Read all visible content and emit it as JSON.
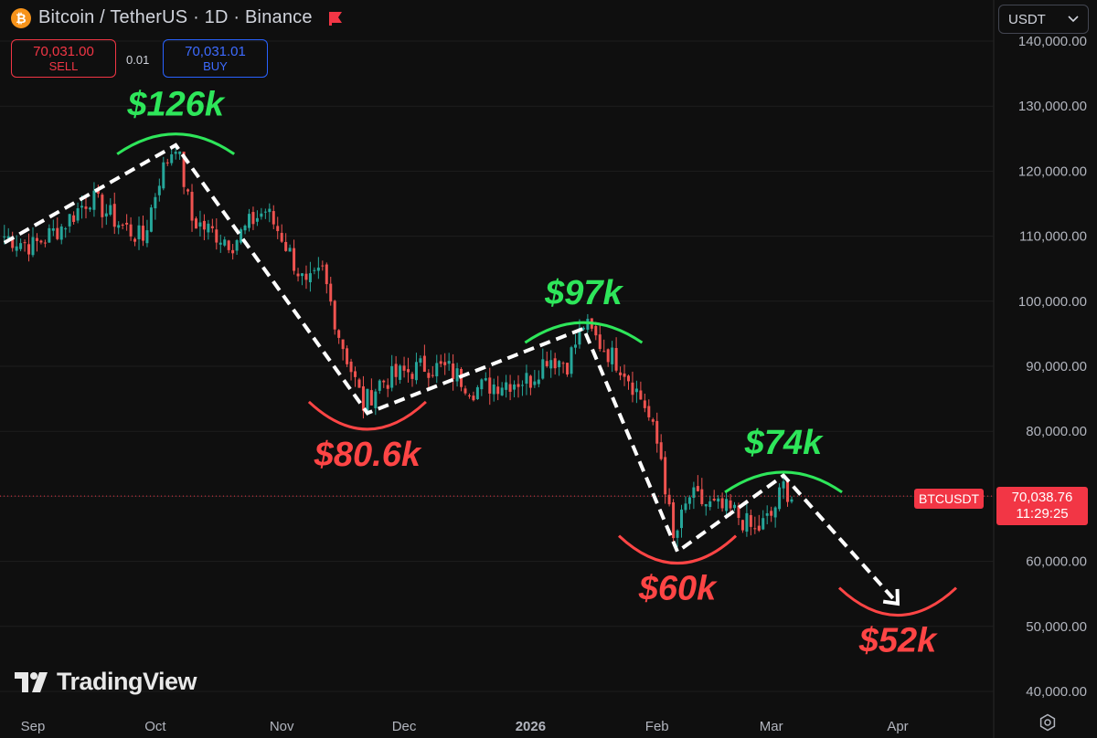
{
  "header": {
    "title": "Bitcoin / TetherUS · 1D · Binance",
    "coin_icon": "bitcoin-icon",
    "coin_glyph": "₿",
    "flag_icon": "flag-icon"
  },
  "trade": {
    "sell_price": "70,031.00",
    "sell_label": "SELL",
    "spread": "0.01",
    "buy_price": "70,031.01",
    "buy_label": "BUY"
  },
  "currency_select": {
    "value": "USDT",
    "icon": "chevron-down-icon"
  },
  "price_axis": {
    "labels": [
      "140,000.00",
      "130,000.00",
      "120,000.00",
      "110,000.00",
      "100,000.00",
      "90,000.00",
      "80,000.00",
      "70,000.00",
      "60,000.00",
      "50,000.00",
      "40,000.00"
    ]
  },
  "time_axis": {
    "labels": [
      "Sep",
      "Oct",
      "Nov",
      "Dec",
      "2026",
      "Feb",
      "Mar",
      "Apr"
    ]
  },
  "last_price": {
    "symbol": "BTCUSDT",
    "price": "70,038.76",
    "countdown": "11:29:25"
  },
  "logo": {
    "text": "TradingView",
    "icon": "tradingview-logo-icon"
  },
  "settings": {
    "icon": "settings-icon"
  },
  "colors": {
    "background": "#0f0f0f",
    "up": "#26a69a",
    "down": "#ef5350",
    "peak_label": "#2ee65a",
    "trough_label": "#ff4545",
    "sell": "#f23645",
    "buy": "#2962ff"
  },
  "chart_data": {
    "type": "candlestick",
    "symbol": "BTCUSDT",
    "interval": "1D",
    "ylim": [
      38000,
      142000
    ],
    "y_ticks": [
      140000,
      130000,
      120000,
      110000,
      100000,
      90000,
      80000,
      70000,
      60000,
      50000,
      40000
    ],
    "x_ticks": [
      {
        "label": "Sep",
        "date": "2025-09-01"
      },
      {
        "label": "Oct",
        "date": "2025-10-01"
      },
      {
        "label": "Nov",
        "date": "2025-11-01"
      },
      {
        "label": "Dec",
        "date": "2025-12-01"
      },
      {
        "label": "2026",
        "date": "2026-01-01"
      },
      {
        "label": "Feb",
        "date": "2026-02-01"
      },
      {
        "label": "Mar",
        "date": "2026-03-01"
      },
      {
        "label": "Apr",
        "date": "2026-04-01"
      }
    ],
    "close_path": [
      {
        "date": "2025-08-25",
        "value": 110000
      },
      {
        "date": "2025-09-01",
        "value": 108500
      },
      {
        "date": "2025-09-08",
        "value": 111500
      },
      {
        "date": "2025-09-15",
        "value": 116000
      },
      {
        "date": "2025-09-22",
        "value": 112000
      },
      {
        "date": "2025-09-28",
        "value": 109500
      },
      {
        "date": "2025-10-02",
        "value": 119000
      },
      {
        "date": "2025-10-06",
        "value": 124500
      },
      {
        "date": "2025-10-10",
        "value": 112500
      },
      {
        "date": "2025-10-14",
        "value": 111000
      },
      {
        "date": "2025-10-20",
        "value": 109000
      },
      {
        "date": "2025-10-25",
        "value": 112500
      },
      {
        "date": "2025-10-28",
        "value": 114000
      },
      {
        "date": "2025-11-01",
        "value": 110000
      },
      {
        "date": "2025-11-07",
        "value": 102000
      },
      {
        "date": "2025-11-11",
        "value": 104500
      },
      {
        "date": "2025-11-15",
        "value": 95000
      },
      {
        "date": "2025-11-21",
        "value": 84000
      },
      {
        "date": "2025-11-25",
        "value": 87500
      },
      {
        "date": "2025-12-01",
        "value": 89000
      },
      {
        "date": "2025-12-06",
        "value": 90000
      },
      {
        "date": "2025-12-12",
        "value": 89500
      },
      {
        "date": "2025-12-18",
        "value": 86500
      },
      {
        "date": "2025-12-25",
        "value": 87500
      },
      {
        "date": "2026-01-01",
        "value": 88000
      },
      {
        "date": "2026-01-05",
        "value": 91500
      },
      {
        "date": "2026-01-10",
        "value": 90500
      },
      {
        "date": "2026-01-14",
        "value": 96500
      },
      {
        "date": "2026-01-18",
        "value": 93500
      },
      {
        "date": "2026-01-24",
        "value": 89500
      },
      {
        "date": "2026-01-29",
        "value": 84000
      },
      {
        "date": "2026-02-02",
        "value": 76000
      },
      {
        "date": "2026-02-05",
        "value": 63000
      },
      {
        "date": "2026-02-09",
        "value": 70000
      },
      {
        "date": "2026-02-14",
        "value": 68500
      },
      {
        "date": "2026-02-20",
        "value": 67500
      },
      {
        "date": "2026-02-25",
        "value": 64500
      },
      {
        "date": "2026-03-01",
        "value": 67000
      },
      {
        "date": "2026-03-04",
        "value": 71500
      },
      {
        "date": "2026-03-06",
        "value": 70000
      }
    ],
    "trend_path": [
      {
        "date": "2025-08-25",
        "value": 109000
      },
      {
        "date": "2025-10-06",
        "value": 124000
      },
      {
        "date": "2025-11-22",
        "value": 82800
      },
      {
        "date": "2026-01-14",
        "value": 95800
      },
      {
        "date": "2026-02-06",
        "value": 61500
      },
      {
        "date": "2026-03-04",
        "value": 73200
      },
      {
        "date": "2026-04-01",
        "value": 53500
      }
    ],
    "annotations": [
      {
        "text": "$126k",
        "kind": "peak",
        "date": "2025-10-06",
        "value": 126000
      },
      {
        "text": "$80.6k",
        "kind": "trough",
        "date": "2025-11-22",
        "value": 80600
      },
      {
        "text": "$97k",
        "kind": "peak",
        "date": "2026-01-14",
        "value": 97000
      },
      {
        "text": "$60k",
        "kind": "trough",
        "date": "2026-02-06",
        "value": 60000
      },
      {
        "text": "$74k",
        "kind": "peak",
        "date": "2026-03-04",
        "value": 74000
      },
      {
        "text": "$52k",
        "kind": "trough",
        "date": "2026-04-01",
        "value": 52000
      }
    ],
    "last_price": 70038.76
  }
}
